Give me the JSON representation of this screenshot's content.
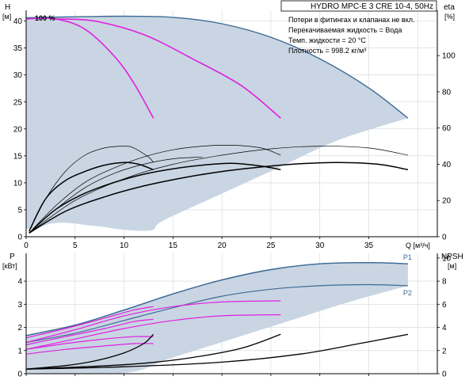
{
  "chart_data": [
    {
      "type": "line",
      "title": "HYDRO MPC-E 3 CRE 10-4, 50Hz",
      "notes": [
        "Потери в фитингах и клапанах не вкл.",
        "Перекачиваемая жидкость = Вода",
        "Темп. жидкости = 20 °C",
        "Плотность = 998.2 кг/м³"
      ],
      "curve_label": "100 %",
      "y_label": "H",
      "y_unit": "[м]",
      "y2_label": "eta",
      "y2_unit": "[%]",
      "x_label": "Q [м³/ч]",
      "xlim": [
        0,
        42
      ],
      "ylim": [
        0,
        42
      ],
      "y2lim": [
        0,
        125
      ],
      "x_ticks": [
        0,
        5,
        10,
        15,
        20,
        25,
        30,
        35
      ],
      "y_ticks": [
        0,
        5,
        10,
        15,
        20,
        25,
        30,
        35,
        40
      ],
      "y2_ticks": [
        0,
        20,
        40,
        60,
        80,
        100
      ],
      "grid": true,
      "envelope": {
        "name": "operating range",
        "color": "#c9d5e2",
        "edge_color": "#3d6a96",
        "upper": [
          [
            0,
            40.6
          ],
          [
            5,
            40.8
          ],
          [
            10,
            40.9
          ],
          [
            15,
            40.7
          ],
          [
            20,
            39.5
          ],
          [
            25,
            37.0
          ],
          [
            30,
            33.0
          ],
          [
            35,
            27.6
          ],
          [
            39,
            22.0
          ]
        ],
        "lower": [
          [
            39,
            22.0
          ],
          [
            32,
            18.0
          ],
          [
            26,
            13.0
          ],
          [
            20,
            8.0
          ],
          [
            14,
            3.0
          ],
          [
            12.8,
            1.2
          ],
          [
            10,
            1.3
          ],
          [
            8,
            1.8
          ],
          [
            6,
            2.2
          ],
          [
            4,
            2.6
          ],
          [
            2.4,
            2.4
          ],
          [
            1,
            1.5
          ],
          [
            0,
            1.5
          ]
        ]
      },
      "series": [
        {
          "color": "#e020e0",
          "width": 1.6,
          "axis": "left",
          "points": [
            [
              0,
              40.4
            ],
            [
              3,
              40.4
            ],
            [
              6,
              38.5
            ],
            [
              9,
              33.5
            ],
            [
              11,
              28.5
            ],
            [
              13,
              22.0
            ]
          ]
        },
        {
          "color": "#e020e0",
          "width": 1.6,
          "axis": "left",
          "points": [
            [
              3,
              40.4
            ],
            [
              7,
              40.0
            ],
            [
              12,
              37.5
            ],
            [
              17,
              33.0
            ],
            [
              22,
              28.0
            ],
            [
              26,
              22.0
            ]
          ]
        },
        {
          "color": "#000000",
          "width": 0.7,
          "axis": "right",
          "points": [
            [
              0.3,
              3
            ],
            [
              2,
              21
            ],
            [
              4,
              36
            ],
            [
              6,
              45
            ],
            [
              8,
              49
            ],
            [
              10,
              50
            ],
            [
              11,
              49
            ],
            [
              12.5,
              44
            ],
            [
              13,
              41
            ]
          ]
        },
        {
          "color": "#000000",
          "width": 0.7,
          "axis": "right",
          "points": [
            [
              0.3,
              2
            ],
            [
              3,
              17
            ],
            [
              6,
              30
            ],
            [
              9,
              38
            ],
            [
              12,
              44
            ],
            [
              15,
              48
            ],
            [
              18,
              50
            ],
            [
              21,
              50.5
            ],
            [
              24,
              49
            ],
            [
              26,
              45
            ]
          ]
        },
        {
          "color": "#000000",
          "width": 0.7,
          "axis": "right",
          "points": [
            [
              0.3,
              2
            ],
            [
              3,
              15
            ],
            [
              6,
              27
            ],
            [
              9,
              35
            ],
            [
              12,
              40
            ],
            [
              15,
              43
            ],
            [
              18,
              44
            ]
          ]
        },
        {
          "color": "#000000",
          "width": 0.7,
          "axis": "right",
          "points": [
            [
              0.3,
              2
            ],
            [
              5,
              20
            ],
            [
              10,
              32
            ],
            [
              15,
              40
            ],
            [
              20,
              45
            ],
            [
              25,
              48.5
            ],
            [
              30,
              50
            ],
            [
              35,
              49
            ],
            [
              39,
              45
            ]
          ]
        },
        {
          "color": "#000000",
          "width": 1.5,
          "axis": "right",
          "points": [
            [
              0.3,
              3
            ],
            [
              2,
              21
            ],
            [
              4,
              31
            ],
            [
              6,
              36
            ],
            [
              8,
              39.5
            ],
            [
              10,
              41
            ],
            [
              11.5,
              40
            ],
            [
              13,
              37
            ]
          ]
        },
        {
          "color": "#000000",
          "width": 1.5,
          "axis": "right",
          "points": [
            [
              0.3,
              2
            ],
            [
              3,
              15
            ],
            [
              6,
              24
            ],
            [
              9,
              30
            ],
            [
              12,
              34.5
            ],
            [
              15,
              37.5
            ],
            [
              18,
              39.5
            ],
            [
              21,
              40.5
            ],
            [
              24,
              39
            ],
            [
              26,
              37
            ]
          ]
        },
        {
          "color": "#000000",
          "width": 1.5,
          "axis": "right",
          "points": [
            [
              0.3,
              2
            ],
            [
              4,
              14
            ],
            [
              8,
              22
            ],
            [
              12,
              28
            ],
            [
              16,
              32.5
            ],
            [
              20,
              36
            ],
            [
              24,
              38.5
            ],
            [
              28,
              40.3
            ],
            [
              32,
              41
            ],
            [
              36,
              40
            ],
            [
              39,
              37
            ]
          ]
        }
      ]
    },
    {
      "type": "line",
      "y_label": "P",
      "y_unit": "[кВт]",
      "y2_label": "NPSH",
      "y2_unit": "[м]",
      "xlim": [
        0,
        42
      ],
      "ylim": [
        0,
        5.2
      ],
      "y2lim": [
        0,
        10.4
      ],
      "y_ticks": [
        0,
        1,
        2,
        3,
        4
      ],
      "y2_ticks": [
        0,
        2,
        4,
        6,
        8,
        10
      ],
      "grid": true,
      "envelope": {
        "color": "#c9d5e2",
        "edge_color": "#3d6a96",
        "upper": [
          [
            0,
            1.65
          ],
          [
            5,
            2.1
          ],
          [
            10,
            2.75
          ],
          [
            15,
            3.45
          ],
          [
            20,
            4.05
          ],
          [
            25,
            4.5
          ],
          [
            30,
            4.75
          ],
          [
            35,
            4.8
          ],
          [
            39,
            4.75
          ]
        ],
        "lower": [
          [
            39,
            3.8
          ],
          [
            33,
            3.1
          ],
          [
            27,
            2.3
          ],
          [
            21,
            1.5
          ],
          [
            15,
            0.7
          ],
          [
            10,
            0.03
          ],
          [
            0,
            0.03
          ]
        ]
      },
      "labeled_curves": [
        {
          "label": "P1",
          "color": "#3d6a96",
          "axis": "left",
          "points": [
            [
              0,
              1.65
            ],
            [
              5,
              2.1
            ],
            [
              10,
              2.75
            ],
            [
              15,
              3.45
            ],
            [
              20,
              4.05
            ],
            [
              25,
              4.5
            ],
            [
              30,
              4.75
            ],
            [
              35,
              4.8
            ],
            [
              39,
              4.75
            ]
          ]
        },
        {
          "label": "P2",
          "color": "#3d6a96",
          "axis": "left",
          "points": [
            [
              0,
              1.35
            ],
            [
              5,
              1.75
            ],
            [
              10,
              2.3
            ],
            [
              15,
              2.85
            ],
            [
              20,
              3.35
            ],
            [
              25,
              3.65
            ],
            [
              30,
              3.8
            ],
            [
              35,
              3.85
            ],
            [
              39,
              3.8
            ]
          ]
        }
      ],
      "series": [
        {
          "color": "#e020e0",
          "width": 1.2,
          "axis": "left",
          "points": [
            [
              0,
              1.55
            ],
            [
              4,
              1.95
            ],
            [
              8,
              2.4
            ],
            [
              11,
              2.75
            ],
            [
              13,
              2.9
            ]
          ]
        },
        {
          "color": "#e020e0",
          "width": 1.2,
          "axis": "left",
          "points": [
            [
              0,
              1.25
            ],
            [
              4,
              1.6
            ],
            [
              8,
              1.95
            ],
            [
              11,
              2.25
            ],
            [
              13,
              2.35
            ]
          ]
        },
        {
          "color": "#e020e0",
          "width": 1.2,
          "axis": "left",
          "points": [
            [
              0,
              1.35
            ],
            [
              5,
              1.9
            ],
            [
              10,
              2.5
            ],
            [
              15,
              2.9
            ],
            [
              20,
              3.1
            ],
            [
              26,
              3.15
            ]
          ]
        },
        {
          "color": "#e020e0",
          "width": 1.2,
          "axis": "left",
          "points": [
            [
              0,
              1.05
            ],
            [
              5,
              1.5
            ],
            [
              10,
              1.95
            ],
            [
              15,
              2.3
            ],
            [
              20,
              2.5
            ],
            [
              26,
              2.55
            ]
          ]
        },
        {
          "color": "#e020e0",
          "width": 1.2,
          "axis": "left",
          "points": [
            [
              0,
              0.85
            ],
            [
              4,
              1.05
            ],
            [
              8,
              1.2
            ],
            [
              11,
              1.3
            ],
            [
              13,
              1.3
            ]
          ]
        },
        {
          "color": "#e020e0",
          "width": 1.2,
          "axis": "left",
          "points": [
            [
              0,
              1.05
            ],
            [
              4,
              1.3
            ],
            [
              8,
              1.5
            ],
            [
              11,
              1.6
            ],
            [
              13,
              1.6
            ]
          ]
        },
        {
          "color": "#000000",
          "width": 1.3,
          "axis": "right",
          "points": [
            [
              0,
              0.4
            ],
            [
              4,
              0.7
            ],
            [
              7,
              1.1
            ],
            [
              10,
              1.8
            ],
            [
              12,
              2.6
            ],
            [
              13,
              3.4
            ]
          ]
        },
        {
          "color": "#000000",
          "width": 1.3,
          "axis": "right",
          "points": [
            [
              0,
              0.4
            ],
            [
              6,
              0.6
            ],
            [
              12,
              0.9
            ],
            [
              17,
              1.4
            ],
            [
              22,
              2.2
            ],
            [
              26,
              3.4
            ]
          ]
        },
        {
          "color": "#000000",
          "width": 1.3,
          "axis": "right",
          "points": [
            [
              0,
              0.4
            ],
            [
              10,
              0.6
            ],
            [
              20,
              1.0
            ],
            [
              28,
              1.7
            ],
            [
              34,
              2.6
            ],
            [
              39,
              3.4
            ]
          ]
        }
      ]
    }
  ]
}
